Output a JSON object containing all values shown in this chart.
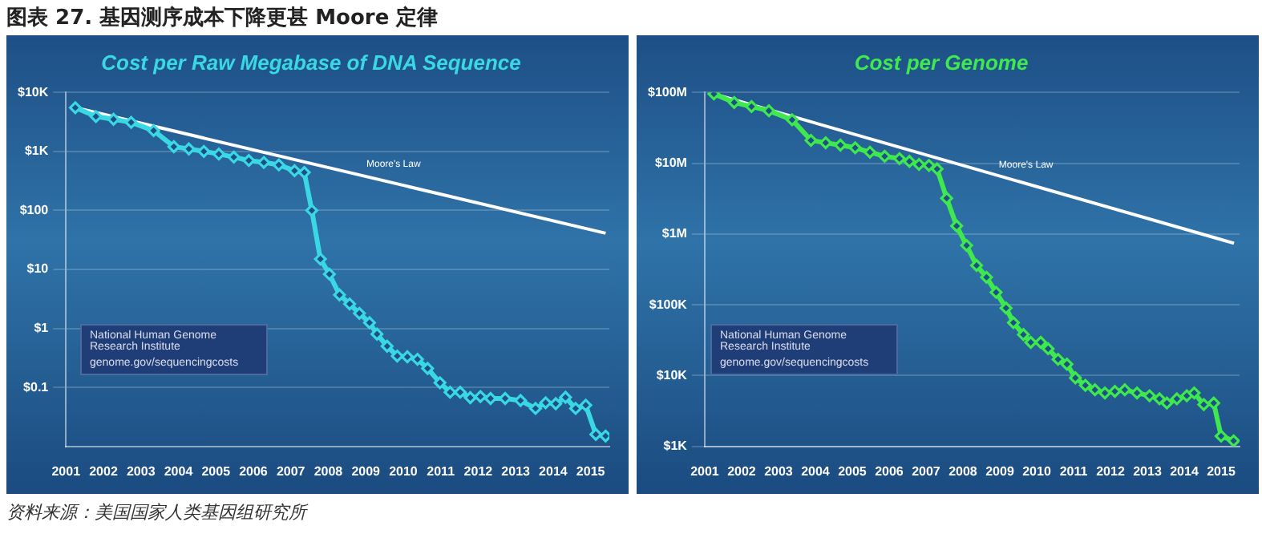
{
  "chart_data": [
    {
      "type": "line",
      "title": "Cost per Raw Megabase of DNA Sequence",
      "annotations": [
        "图表 27. 基因测序成本下降更甚 Moore 定律",
        "National Human Genome Research Institute",
        "genome.gov/sequencingcosts"
      ],
      "log": "y",
      "grid": "y",
      "legend": false,
      "marker": "diamond",
      "xlim": [
        2001.5,
        2016
      ],
      "xticks": [
        {
          "value": 2001.5,
          "label": "2001"
        },
        {
          "value": 2002.5,
          "label": "2002"
        },
        {
          "value": 2003.5,
          "label": "2003"
        },
        {
          "value": 2004.5,
          "label": "2004"
        },
        {
          "value": 2005.5,
          "label": "2005"
        },
        {
          "value": 2006.5,
          "label": "2006"
        },
        {
          "value": 2007.5,
          "label": "2007"
        },
        {
          "value": 2008.5,
          "label": "2008"
        },
        {
          "value": 2009.5,
          "label": "2009"
        },
        {
          "value": 2010.5,
          "label": "2010"
        },
        {
          "value": 2011.5,
          "label": "2011"
        },
        {
          "value": 2012.5,
          "label": "2012"
        },
        {
          "value": 2013.5,
          "label": "2013"
        },
        {
          "value": 2014.5,
          "label": "2014"
        },
        {
          "value": 2015.5,
          "label": "2015"
        }
      ],
      "ylim": [
        0.01,
        10000
      ],
      "yticks": [
        {
          "value": 10000,
          "label": "$10K"
        },
        {
          "value": 1000,
          "label": "$1K"
        },
        {
          "value": 100,
          "label": "$100"
        },
        {
          "value": 10,
          "label": "$10"
        },
        {
          "value": 1,
          "label": "$1"
        },
        {
          "value": 0.1,
          "label": "$0.1"
        }
      ],
      "series": [
        {
          "color": "#3ad8e4",
          "x": [
            2001.75,
            2002.3,
            2002.77,
            2003.24,
            2003.84,
            2004.38,
            2004.78,
            2005.18,
            2005.58,
            2005.98,
            2006.38,
            2006.78,
            2007.18,
            2007.6,
            2007.86,
            2008.06,
            2008.29,
            2008.53,
            2008.8,
            2009.07,
            2009.33,
            2009.6,
            2009.8,
            2010.07,
            2010.34,
            2010.61,
            2010.88,
            2011.15,
            2011.48,
            2011.75,
            2012.02,
            2012.29,
            2012.56,
            2012.83,
            2013.22,
            2013.63,
            2014.03,
            2014.3,
            2014.57,
            2014.83,
            2015.1,
            2015.37,
            2015.64,
            2015.9
          ],
          "values": [
            5500,
            3900,
            3500,
            3100,
            2250,
            1200,
            1100,
            1000,
            900,
            800,
            700,
            650,
            590,
            470,
            440,
            100,
            15,
            8.3,
            3.7,
            2.6,
            1.8,
            1.25,
            0.8,
            0.5,
            0.34,
            0.33,
            0.3,
            0.21,
            0.12,
            0.083,
            0.083,
            0.067,
            0.07,
            0.065,
            0.065,
            0.06,
            0.044,
            0.055,
            0.053,
            0.068,
            0.044,
            0.05,
            0.016,
            0.015
          ]
        },
        {
          "type": "line",
          "name": "Moore's Law",
          "color": "#ffffff",
          "marker": "none",
          "x": [
            2001.75,
            2015.9
          ],
          "values": [
            5500,
            41
          ]
        }
      ]
    },
    {
      "type": "line",
      "title": "Cost per Genome",
      "annotations": [
        "National Human Genome Research Institute",
        "genome.gov/sequencingcosts",
        "资料来源：美国国家人类基因组研究所"
      ],
      "log": "y",
      "grid": "y",
      "legend": false,
      "marker": "diamond",
      "xlim": [
        2001.5,
        2016
      ],
      "xticks": [
        {
          "value": 2001.5,
          "label": "2001"
        },
        {
          "value": 2002.5,
          "label": "2002"
        },
        {
          "value": 2003.5,
          "label": "2003"
        },
        {
          "value": 2004.5,
          "label": "2004"
        },
        {
          "value": 2005.5,
          "label": "2005"
        },
        {
          "value": 2006.5,
          "label": "2006"
        },
        {
          "value": 2007.5,
          "label": "2007"
        },
        {
          "value": 2008.5,
          "label": "2008"
        },
        {
          "value": 2009.5,
          "label": "2009"
        },
        {
          "value": 2010.5,
          "label": "2010"
        },
        {
          "value": 2011.5,
          "label": "2011"
        },
        {
          "value": 2012.5,
          "label": "2012"
        },
        {
          "value": 2013.5,
          "label": "2013"
        },
        {
          "value": 2014.5,
          "label": "2014"
        },
        {
          "value": 2015.5,
          "label": "2015"
        }
      ],
      "ylim": [
        1000,
        100000000
      ],
      "yticks": [
        {
          "value": 100000000,
          "label": "$100M"
        },
        {
          "value": 10000000,
          "label": "$10M"
        },
        {
          "value": 1000000,
          "label": "$1M"
        },
        {
          "value": 100000,
          "label": "$100K"
        },
        {
          "value": 10000,
          "label": "$10K"
        },
        {
          "value": 1000,
          "label": "$1K"
        }
      ],
      "series": [
        {
          "color": "#3ee84e",
          "x": [
            2001.75,
            2002.3,
            2002.77,
            2003.24,
            2003.87,
            2004.38,
            2004.78,
            2005.18,
            2005.58,
            2005.98,
            2006.38,
            2006.78,
            2007.05,
            2007.31,
            2007.58,
            2007.8,
            2008.06,
            2008.33,
            2008.6,
            2008.87,
            2009.14,
            2009.4,
            2009.67,
            2009.87,
            2010.14,
            2010.34,
            2010.61,
            2010.81,
            2011.08,
            2011.32,
            2011.55,
            2011.82,
            2012.08,
            2012.35,
            2012.62,
            2012.89,
            2013.22,
            2013.56,
            2013.83,
            2014.03,
            2014.3,
            2014.57,
            2014.77,
            2015.03,
            2015.3,
            2015.5,
            2015.84
          ],
          "values": [
            95000000,
            72000000,
            63000000,
            55000000,
            41000000,
            21000000,
            19400000,
            18000000,
            16500000,
            14300000,
            12500000,
            11600000,
            10600000,
            9600000,
            9300000,
            8300000,
            3200000,
            1300000,
            690000,
            360000,
            245000,
            150000,
            90000,
            56000,
            38000,
            29500,
            29500,
            24000,
            17000,
            14500,
            9300,
            7300,
            6300,
            5700,
            6000,
            6300,
            5700,
            5200,
            4700,
            4100,
            4700,
            5200,
            5700,
            3900,
            4100,
            1400,
            1200
          ]
        },
        {
          "type": "line",
          "name": "Moore's Law",
          "color": "#ffffff",
          "marker": "none",
          "x": [
            2001.75,
            2015.85
          ],
          "values": [
            95000000,
            740000
          ]
        }
      ]
    }
  ]
}
